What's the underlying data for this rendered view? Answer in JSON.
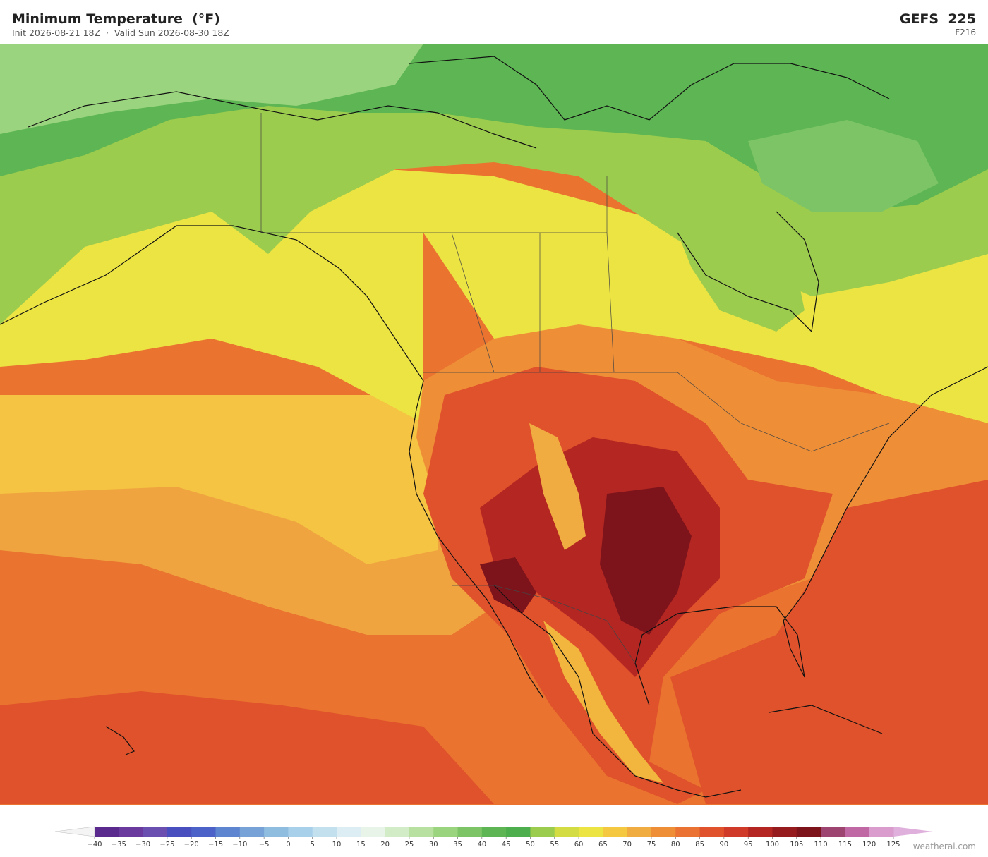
{
  "header": {
    "title": "Minimum Temperature  (°F)",
    "subtitle": "Init 2026-08-21 18Z  ·  Valid Sun 2026-08-30 18Z",
    "model": "GEFS  225",
    "forecast_hour": "F216"
  },
  "colorbar": {
    "ticks": [
      {
        "value": -40,
        "label": "−40"
      },
      {
        "value": -35,
        "label": "−35"
      },
      {
        "value": -30,
        "label": "−30"
      },
      {
        "value": -25,
        "label": "−25"
      },
      {
        "value": -20,
        "label": "−20"
      },
      {
        "value": -15,
        "label": "−15"
      },
      {
        "value": -10,
        "label": "−10"
      },
      {
        "value": -5,
        "label": "−5"
      },
      0,
      5,
      10,
      15,
      20,
      25,
      30,
      35,
      40,
      45,
      50,
      55,
      60,
      65,
      70,
      75,
      80,
      85,
      90,
      95,
      100,
      105,
      110,
      115,
      120,
      125
    ],
    "colors": [
      "#5b2a8e",
      "#6a3a9e",
      "#6b4fb0",
      "#4a4fc0",
      "#4c62c8",
      "#5e86d0",
      "#76a2d8",
      "#8fbde0",
      "#a9d0ea",
      "#c3e0ef",
      "#dcedf3",
      "#e8f4e8",
      "#d2ecc8",
      "#b8e0a0",
      "#9bd47f",
      "#7cc465",
      "#5db553",
      "#4cae4c",
      "#9ccc4e",
      "#d4dc44",
      "#ece443",
      "#f5c842",
      "#f0ac40",
      "#ee8f38",
      "#ea7232",
      "#e0522b",
      "#cf3b28",
      "#b42622",
      "#951b1e",
      "#7e141b",
      "#9d4470",
      "#c068a4",
      "#d99ccd"
    ],
    "under_color": "#f4f4f4",
    "over_color": "#e0b0dc"
  },
  "footer": {
    "credit": "weatherai.com"
  }
}
